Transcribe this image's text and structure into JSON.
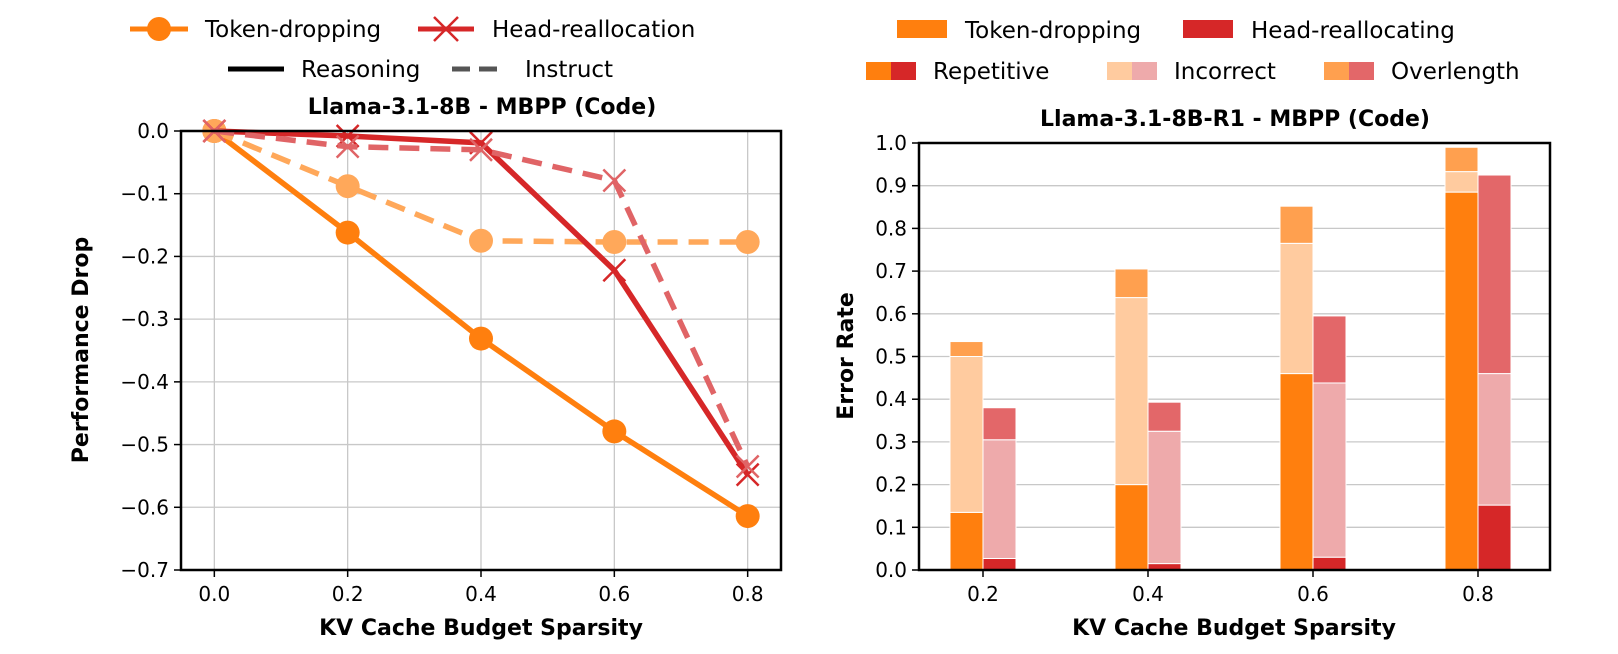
{
  "colors": {
    "token_line": "#ff7f0e",
    "token_line_light": "#ffa85a",
    "head_line": "#d62728",
    "head_line_light": "#e06466",
    "token_repetitive": "#ff7f0e",
    "token_incorrect": "#ffcb9f",
    "token_overlength": "#ffa04f",
    "head_repetitive": "#d62728",
    "head_incorrect": "#eeaaab",
    "head_overlength": "#e36769"
  },
  "legend_left": {
    "token": "Token-dropping",
    "head": "Head-reallocation",
    "reasoning": "Reasoning",
    "instruct": "Instruct"
  },
  "legend_right": {
    "token": "Token-dropping",
    "head": "Head-reallocating",
    "repetitive": "Repetitive",
    "incorrect": "Incorrect",
    "overlength": "Overlength"
  },
  "chart_data": [
    {
      "type": "line",
      "title": "Llama-3.1-8B - MBPP (Code)",
      "xlabel": "KV Cache Budget Sparsity",
      "ylabel": "Performance Drop",
      "xlim": [
        -0.05,
        0.85
      ],
      "ylim": [
        -0.7,
        0.0
      ],
      "xticks": [
        "0.0",
        "0.2",
        "0.4",
        "0.6",
        "0.8"
      ],
      "yticks": [
        "0.0",
        "−0.1",
        "−0.2",
        "−0.3",
        "−0.4",
        "−0.5",
        "−0.6",
        "−0.7"
      ],
      "x": [
        0.0,
        0.2,
        0.4,
        0.6,
        0.8
      ],
      "grid": true,
      "series": [
        {
          "name": "Token-dropping",
          "style": "Reasoning",
          "marker": "circle",
          "values": [
            0.0,
            -0.162,
            -0.331,
            -0.479,
            -0.614
          ]
        },
        {
          "name": "Token-dropping",
          "style": "Instruct",
          "marker": "circle",
          "values": [
            0.0,
            -0.088,
            -0.175,
            -0.177,
            -0.177
          ]
        },
        {
          "name": "Head-reallocation",
          "style": "Reasoning",
          "marker": "x",
          "values": [
            0.0,
            -0.008,
            -0.019,
            -0.222,
            -0.548
          ]
        },
        {
          "name": "Head-reallocation",
          "style": "Instruct",
          "marker": "x",
          "values": [
            0.0,
            -0.025,
            -0.03,
            -0.079,
            -0.535
          ]
        }
      ]
    },
    {
      "type": "bar",
      "stacked": true,
      "title": "Llama-3.1-8B-R1 - MBPP (Code)",
      "xlabel": "KV Cache Budget Sparsity",
      "ylabel": "Error Rate",
      "ylim": [
        0.0,
        1.0
      ],
      "yticks": [
        "0.0",
        "0.1",
        "0.2",
        "0.3",
        "0.4",
        "0.5",
        "0.6",
        "0.7",
        "0.8",
        "0.9",
        "1.0"
      ],
      "categories": [
        "0.2",
        "0.4",
        "0.6",
        "0.8"
      ],
      "grid": true,
      "groups": [
        {
          "name": "Token-dropping",
          "stack": [
            {
              "name": "Repetitive",
              "values": [
                0.135,
                0.2,
                0.46,
                0.885
              ]
            },
            {
              "name": "Incorrect",
              "values": [
                0.365,
                0.438,
                0.305,
                0.048
              ]
            },
            {
              "name": "Overlength",
              "values": [
                0.035,
                0.067,
                0.087,
                0.057
              ]
            }
          ]
        },
        {
          "name": "Head-reallocating",
          "stack": [
            {
              "name": "Repetitive",
              "values": [
                0.027,
                0.015,
                0.03,
                0.152
              ]
            },
            {
              "name": "Incorrect",
              "values": [
                0.278,
                0.31,
                0.408,
                0.308
              ]
            },
            {
              "name": "Overlength",
              "values": [
                0.075,
                0.068,
                0.157,
                0.465
              ]
            }
          ]
        }
      ]
    }
  ]
}
